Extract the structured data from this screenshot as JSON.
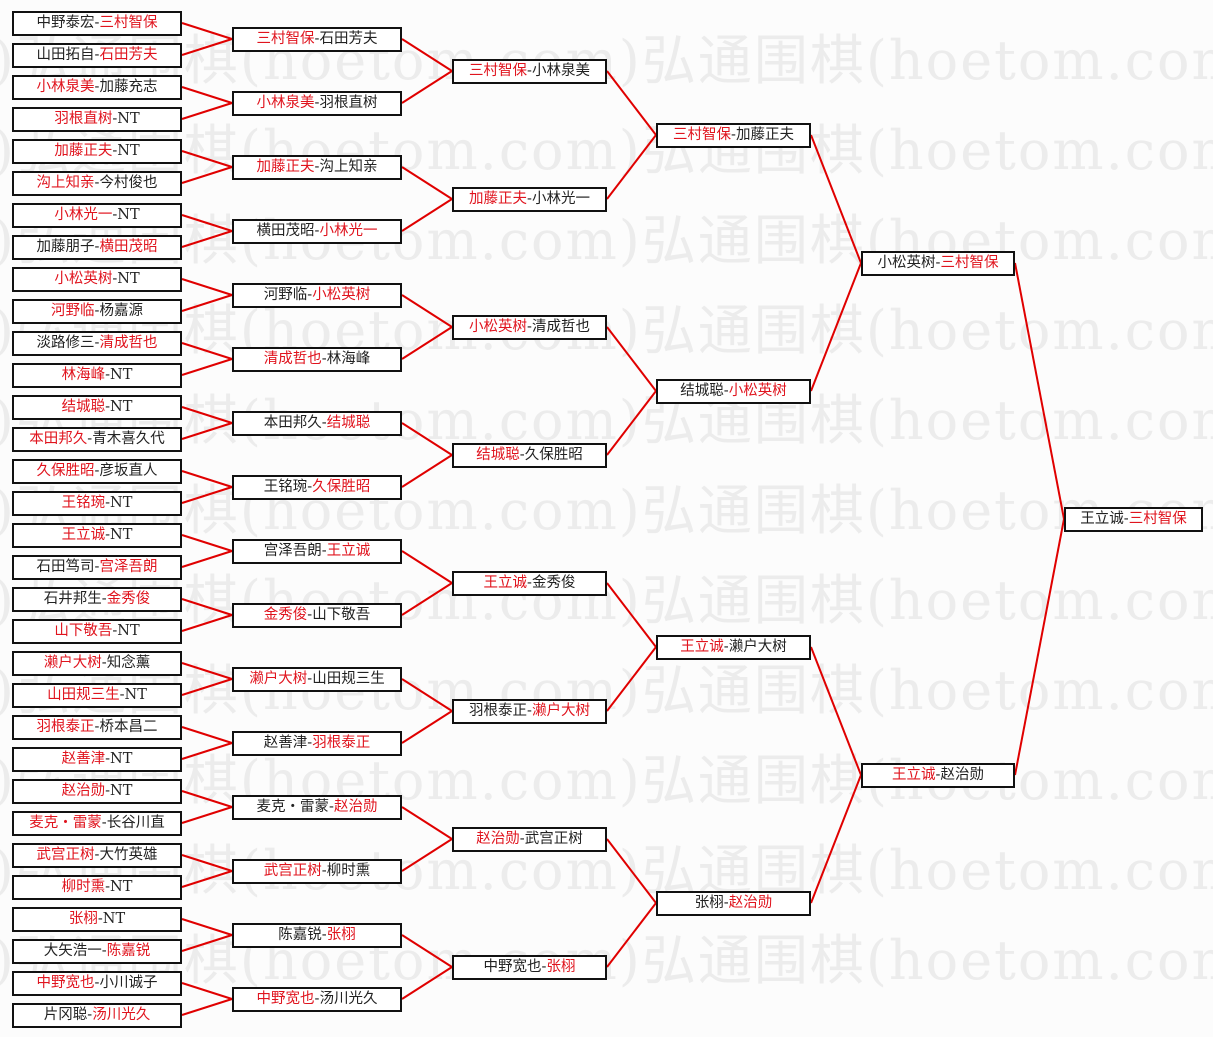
{
  "watermark": "弘通围棋(hoetom.com)",
  "colors": {
    "winner": "#e0141e",
    "line": "#e00000",
    "border": "#111111"
  },
  "separator": "-",
  "rounds": [
    [
      {
        "p1": "中野泰宏",
        "p2": "三村智保",
        "winner": 2
      },
      {
        "p1": "山田拓自",
        "p2": "石田芳夫",
        "winner": 2
      },
      {
        "p1": "小林泉美",
        "p2": "加藤充志",
        "winner": 1
      },
      {
        "p1": "羽根直树",
        "p2": "NT",
        "winner": 1
      },
      {
        "p1": "加藤正夫",
        "p2": "NT",
        "winner": 1
      },
      {
        "p1": "沟上知亲",
        "p2": "今村俊也",
        "winner": 1
      },
      {
        "p1": "小林光一",
        "p2": "NT",
        "winner": 1
      },
      {
        "p1": "加藤朋子",
        "p2": "横田茂昭",
        "winner": 2
      },
      {
        "p1": "小松英树",
        "p2": "NT",
        "winner": 1
      },
      {
        "p1": "河野临",
        "p2": "杨嘉源",
        "winner": 1
      },
      {
        "p1": "淡路修三",
        "p2": "清成哲也",
        "winner": 2
      },
      {
        "p1": "林海峰",
        "p2": "NT",
        "winner": 1
      },
      {
        "p1": "结城聪",
        "p2": "NT",
        "winner": 1
      },
      {
        "p1": "本田邦久",
        "p2": "青木喜久代",
        "winner": 1
      },
      {
        "p1": "久保胜昭",
        "p2": "彦坂直人",
        "winner": 1
      },
      {
        "p1": "王铭琬",
        "p2": "NT",
        "winner": 1
      },
      {
        "p1": "王立诚",
        "p2": "NT",
        "winner": 1
      },
      {
        "p1": "石田笃司",
        "p2": "宫泽吾朗",
        "winner": 2
      },
      {
        "p1": "石井邦生",
        "p2": "金秀俊",
        "winner": 2
      },
      {
        "p1": "山下敬吾",
        "p2": "NT",
        "winner": 1
      },
      {
        "p1": "濑户大树",
        "p2": "知念薰",
        "winner": 1
      },
      {
        "p1": "山田规三生",
        "p2": "NT",
        "winner": 1
      },
      {
        "p1": "羽根泰正",
        "p2": "桥本昌二",
        "winner": 1
      },
      {
        "p1": "赵善津",
        "p2": "NT",
        "winner": 1
      },
      {
        "p1": "赵治勋",
        "p2": "NT",
        "winner": 1
      },
      {
        "p1": "麦克・雷蒙",
        "p2": "长谷川直",
        "winner": 1
      },
      {
        "p1": "武宫正树",
        "p2": "大竹英雄",
        "winner": 1
      },
      {
        "p1": "柳时熏",
        "p2": "NT",
        "winner": 1
      },
      {
        "p1": "张栩",
        "p2": "NT",
        "winner": 1
      },
      {
        "p1": "大矢浩一",
        "p2": "陈嘉锐",
        "winner": 2
      },
      {
        "p1": "中野宽也",
        "p2": "小川诚子",
        "winner": 1
      },
      {
        "p1": "片冈聪",
        "p2": "汤川光久",
        "winner": 2
      }
    ],
    [
      {
        "p1": "三村智保",
        "p2": "石田芳夫",
        "winner": 1
      },
      {
        "p1": "小林泉美",
        "p2": "羽根直树",
        "winner": 1
      },
      {
        "p1": "加藤正夫",
        "p2": "沟上知亲",
        "winner": 1
      },
      {
        "p1": "横田茂昭",
        "p2": "小林光一",
        "winner": 2
      },
      {
        "p1": "河野临",
        "p2": "小松英树",
        "winner": 2
      },
      {
        "p1": "清成哲也",
        "p2": "林海峰",
        "winner": 1
      },
      {
        "p1": "本田邦久",
        "p2": "结城聪",
        "winner": 2
      },
      {
        "p1": "王铭琬",
        "p2": "久保胜昭",
        "winner": 2
      },
      {
        "p1": "宫泽吾朗",
        "p2": "王立诚",
        "winner": 2
      },
      {
        "p1": "金秀俊",
        "p2": "山下敬吾",
        "winner": 1
      },
      {
        "p1": "濑户大树",
        "p2": "山田规三生",
        "winner": 1
      },
      {
        "p1": "赵善津",
        "p2": "羽根泰正",
        "winner": 2
      },
      {
        "p1": "麦克・雷蒙",
        "p2": "赵治勋",
        "winner": 2
      },
      {
        "p1": "武宫正树",
        "p2": "柳时熏",
        "winner": 1
      },
      {
        "p1": "陈嘉锐",
        "p2": "张栩",
        "winner": 2
      },
      {
        "p1": "中野宽也",
        "p2": "汤川光久",
        "winner": 1
      }
    ],
    [
      {
        "p1": "三村智保",
        "p2": "小林泉美",
        "winner": 1
      },
      {
        "p1": "加藤正夫",
        "p2": "小林光一",
        "winner": 1
      },
      {
        "p1": "小松英树",
        "p2": "清成哲也",
        "winner": 1
      },
      {
        "p1": "结城聪",
        "p2": "久保胜昭",
        "winner": 1
      },
      {
        "p1": "王立诚",
        "p2": "金秀俊",
        "winner": 1
      },
      {
        "p1": "羽根泰正",
        "p2": "濑户大树",
        "winner": 2
      },
      {
        "p1": "赵治勋",
        "p2": "武宫正树",
        "winner": 1
      },
      {
        "p1": "中野宽也",
        "p2": "张栩",
        "winner": 2
      }
    ],
    [
      {
        "p1": "三村智保",
        "p2": "加藤正夫",
        "winner": 1
      },
      {
        "p1": "结城聪",
        "p2": "小松英树",
        "winner": 2
      },
      {
        "p1": "王立诚",
        "p2": "濑户大树",
        "winner": 1
      },
      {
        "p1": "张栩",
        "p2": "赵治勋",
        "winner": 2
      }
    ],
    [
      {
        "p1": "小松英树",
        "p2": "三村智保",
        "winner": 2
      },
      {
        "p1": "王立诚",
        "p2": "赵治勋",
        "winner": 1
      }
    ],
    [
      {
        "p1": "王立诚",
        "p2": "三村智保",
        "winner": 2
      }
    ]
  ]
}
